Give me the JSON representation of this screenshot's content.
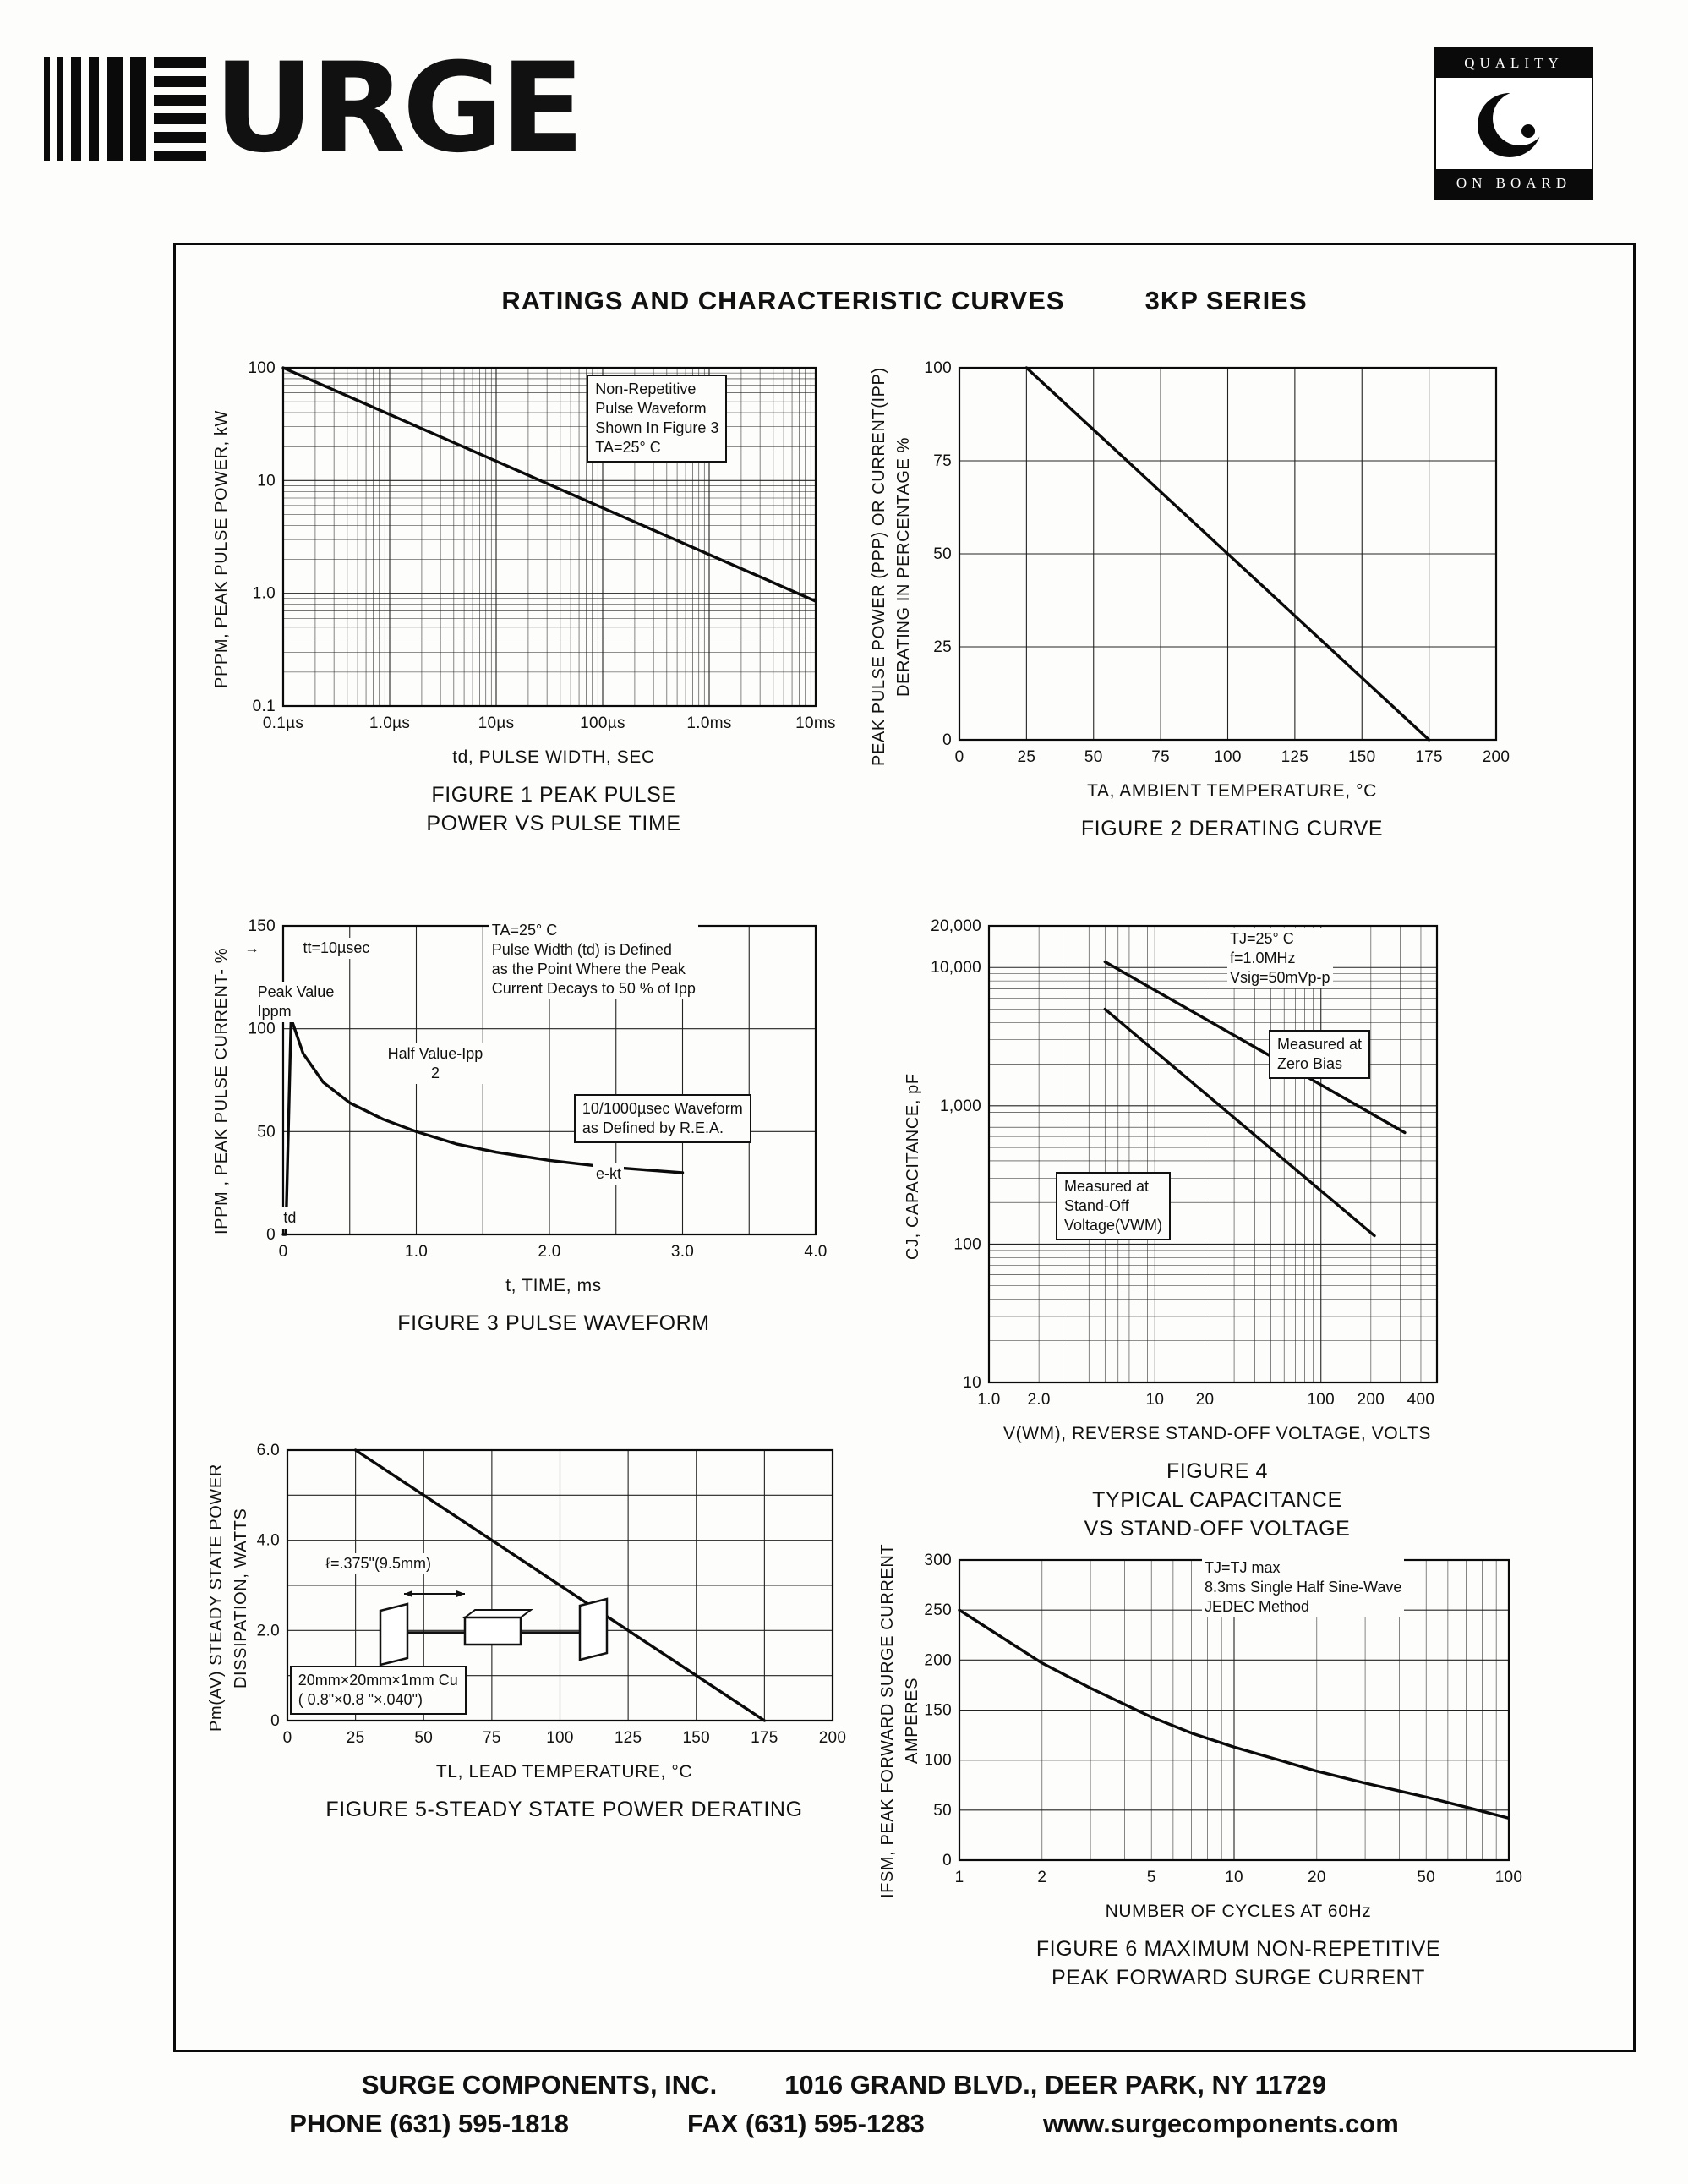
{
  "page": {
    "logo": {
      "word": "URGE"
    },
    "quality_logo": {
      "top": "QUALITY",
      "bottom": "ON BOARD"
    },
    "title": "RATINGS AND CHARACTERISTIC CURVES",
    "series_name": "3KP SERIES",
    "footer": {
      "company": "SURGE COMPONENTS, INC.",
      "address": "1016 GRAND BLVD., DEER PARK, NY  11729",
      "phone": "PHONE (631) 595-1818",
      "fax": "FAX (631) 595-1283",
      "website": "www.surgecomponents.com"
    }
  },
  "chart_data": [
    {
      "id": "fig1",
      "type": "line",
      "title": "FIGURE 1 PEAK PULSE\nPOWER VS PULSE TIME",
      "xlabel": "td, PULSE WIDTH, SEC",
      "ylabel": "PPPM,  PEAK  PULSE  POWER,  kW",
      "x_axis": {
        "scale": "log",
        "min": 1e-07,
        "max": 0.01,
        "ticks": [
          {
            "v": 1e-07,
            "l": "0.1µs"
          },
          {
            "v": 1e-06,
            "l": "1.0µs"
          },
          {
            "v": 1e-05,
            "l": "10µs"
          },
          {
            "v": 0.0001,
            "l": "100µs"
          },
          {
            "v": 0.001,
            "l": "1.0ms"
          },
          {
            "v": 0.01,
            "l": "10ms"
          }
        ]
      },
      "y_axis": {
        "scale": "log",
        "min": 0.1,
        "max": 100,
        "ticks": [
          {
            "v": 100,
            "l": "100"
          },
          {
            "v": 10,
            "l": "10"
          },
          {
            "v": 1,
            "l": "1.0"
          },
          {
            "v": 0.1,
            "l": "0.1"
          }
        ]
      },
      "series": [
        {
          "name": "peak pulse power",
          "points": [
            [
              1e-07,
              100
            ],
            [
              0.01,
              0.85
            ]
          ]
        }
      ],
      "annotations": [
        {
          "text": "Non-Repetitive\nPulse Waveform\nShown In Figure 3\nTA=25° C",
          "x": 59,
          "y": 5,
          "box": true
        }
      ]
    },
    {
      "id": "fig2",
      "type": "line",
      "title": "FIGURE 2 DERATING CURVE",
      "xlabel": "TA, AMBIENT   TEMPERATURE, °C",
      "ylabel": "PEAK  PULSE  POWER (PPP) OR  CURRENT(IPP)\nDERATING  IN  PERCENTAGE %",
      "x_axis": {
        "scale": "linear",
        "min": 0,
        "max": 200,
        "grid": 25,
        "ticks": [
          {
            "v": 0,
            "l": "0"
          },
          {
            "v": 25,
            "l": "25"
          },
          {
            "v": 50,
            "l": "50"
          },
          {
            "v": 75,
            "l": "75"
          },
          {
            "v": 100,
            "l": "100"
          },
          {
            "v": 125,
            "l": "125"
          },
          {
            "v": 150,
            "l": "150"
          },
          {
            "v": 175,
            "l": "175"
          },
          {
            "v": 200,
            "l": "200"
          }
        ]
      },
      "y_axis": {
        "scale": "linear",
        "min": 0,
        "max": 100,
        "grid": 25,
        "ticks": [
          {
            "v": 0,
            "l": "0"
          },
          {
            "v": 25,
            "l": "25"
          },
          {
            "v": 50,
            "l": "50"
          },
          {
            "v": 75,
            "l": "75"
          },
          {
            "v": 100,
            "l": "100"
          }
        ]
      },
      "series": [
        {
          "name": "derating",
          "points": [
            [
              25,
              100
            ],
            [
              175,
              0
            ]
          ]
        }
      ],
      "annotations": []
    },
    {
      "id": "fig3",
      "type": "line",
      "title": "FIGURE 3  PULSE WAVEFORM",
      "xlabel": "t, TIME, ms",
      "ylabel": "IPPM , PEAK  PULSE  CURRENT- %",
      "x_axis": {
        "scale": "linear",
        "min": 0,
        "max": 4,
        "grid": 0.5,
        "ticks": [
          {
            "v": 0,
            "l": "0"
          },
          {
            "v": 1,
            "l": "1.0"
          },
          {
            "v": 2,
            "l": "2.0"
          },
          {
            "v": 3,
            "l": "3.0"
          },
          {
            "v": 4,
            "l": "4.0"
          }
        ]
      },
      "y_axis": {
        "scale": "linear",
        "min": 0,
        "max": 150,
        "grid": 50,
        "ticks": [
          {
            "v": 0,
            "l": "0"
          },
          {
            "v": 50,
            "l": "50"
          },
          {
            "v": 100,
            "l": "100"
          },
          {
            "v": 150,
            "l": "150"
          }
        ]
      },
      "series": [
        {
          "name": "pulse waveform",
          "points": [
            [
              0,
              0
            ],
            [
              0.02,
              0
            ],
            [
              0.06,
              105
            ],
            [
              0.15,
              88
            ],
            [
              0.3,
              74
            ],
            [
              0.5,
              64
            ],
            [
              0.75,
              56
            ],
            [
              1.0,
              50
            ],
            [
              1.3,
              44
            ],
            [
              1.6,
              40
            ],
            [
              2.0,
              36
            ],
            [
              2.4,
              33
            ],
            [
              2.8,
              31
            ],
            [
              3.0,
              30
            ]
          ]
        }
      ],
      "annotations": [
        {
          "text": "→",
          "x": 6,
          "y": 8
        },
        {
          "text": "tt=10µsec",
          "x": 15,
          "y": 8
        },
        {
          "text": "TA=25° C\nPulse Width (td) is Defined\nas the Point Where the Peak\nCurrent Decays to 50 % of Ipp",
          "x": 44,
          "y": 3
        },
        {
          "text": "Peak Value\nIppm",
          "x": 8,
          "y": 20
        },
        {
          "text": "Half Value-Ipp\n2",
          "x": 28,
          "y": 37,
          "center": true
        },
        {
          "text": "10/1000µsec Waveform\nas Defined by R.E.A.",
          "x": 57,
          "y": 51,
          "box": true
        },
        {
          "text": "e-kt",
          "x": 60,
          "y": 70
        },
        {
          "text": "td",
          "x": 12,
          "y": 82
        }
      ]
    },
    {
      "id": "fig4",
      "type": "line",
      "title": "FIGURE 4\nTYPICAL CAPACITANCE\nVS STAND-OFF VOLTAGE",
      "xlabel": "V(WM), REVERSE  STAND-OFF  VOLTAGE, VOLTS",
      "ylabel": "CJ, CAPACITANCE, pF",
      "x_axis": {
        "scale": "log",
        "min": 1,
        "max": 500,
        "ticks": [
          {
            "v": 1,
            "l": "1.0"
          },
          {
            "v": 2,
            "l": "2.0"
          },
          {
            "v": 10,
            "l": "10"
          },
          {
            "v": 20,
            "l": "20"
          },
          {
            "v": 100,
            "l": "100"
          },
          {
            "v": 200,
            "l": "200"
          },
          {
            "v": 400,
            "l": "400"
          }
        ]
      },
      "y_axis": {
        "scale": "log",
        "min": 10,
        "max": 20000,
        "ticks": [
          {
            "v": 20000,
            "l": "20,000"
          },
          {
            "v": 10000,
            "l": "10,000"
          },
          {
            "v": 1000,
            "l": "1,000"
          },
          {
            "v": 100,
            "l": "100"
          },
          {
            "v": 10,
            "l": "10"
          }
        ]
      },
      "series": [
        {
          "name": "measured at zero bias",
          "points": [
            [
              5,
              11000
            ],
            [
              320,
              640
            ]
          ]
        },
        {
          "name": "measured at stand-off voltage",
          "points": [
            [
              5,
              5000
            ],
            [
              210,
              115
            ]
          ]
        }
      ],
      "annotations": [
        {
          "text": "TJ=25° C\nf=1.0MHz\nVsig=50mVp-p",
          "x": 56,
          "y": 3
        },
        {
          "text": "Measured at\nZero Bias",
          "x": 63,
          "y": 23,
          "box": true
        },
        {
          "text": "Measured at\nStand-Off\nVoltage(VWM)",
          "x": 27,
          "y": 51,
          "box": true
        }
      ]
    },
    {
      "id": "fig5",
      "type": "line",
      "title": "FIGURE 5-STEADY STATE POWER DERATING",
      "xlabel": "TL, LEAD  TEMPERATURE, °C",
      "ylabel": "Pm(AV) STEADY  STATE  POWER\nDISSIPATION, WATTS",
      "x_axis": {
        "scale": "linear",
        "min": 0,
        "max": 200,
        "grid": 25,
        "ticks": [
          {
            "v": 0,
            "l": "0"
          },
          {
            "v": 25,
            "l": "25"
          },
          {
            "v": 50,
            "l": "50"
          },
          {
            "v": 75,
            "l": "75"
          },
          {
            "v": 100,
            "l": "100"
          },
          {
            "v": 125,
            "l": "125"
          },
          {
            "v": 150,
            "l": "150"
          },
          {
            "v": 175,
            "l": "175"
          },
          {
            "v": 200,
            "l": "200"
          }
        ]
      },
      "y_axis": {
        "scale": "linear",
        "min": 0,
        "max": 6,
        "grid": 1,
        "ticks": [
          {
            "v": 0,
            "l": "0"
          },
          {
            "v": 2,
            "l": "2.0"
          },
          {
            "v": 4,
            "l": "4.0"
          },
          {
            "v": 6,
            "l": "6.0"
          }
        ]
      },
      "series": [
        {
          "name": "steady state power",
          "points": [
            [
              25,
              6
            ],
            [
              175,
              0
            ]
          ]
        }
      ],
      "annotations": [
        {
          "text": "ℓ=.375\"(9.5mm)",
          "x": 18,
          "y": 36
        },
        {
          "text": "20mm×20mm×1mm Cu\n( 0.8\"×0.8 \"×.040\")",
          "x": 13,
          "y": 71,
          "box": true
        }
      ]
    },
    {
      "id": "fig6",
      "type": "line",
      "title": "FIGURE 6  MAXIMUM NON-REPETITIVE\nPEAK FORWARD SURGE CURRENT",
      "xlabel": "NUMBER  OF  CYCLES  AT  60Hz",
      "ylabel": "IFSM, PEAK  FORWARD  SURGE  CURRENT\nAMPERES",
      "x_axis": {
        "scale": "log",
        "min": 1,
        "max": 100,
        "ticks": [
          {
            "v": 1,
            "l": "1"
          },
          {
            "v": 2,
            "l": "2"
          },
          {
            "v": 5,
            "l": "5"
          },
          {
            "v": 10,
            "l": "10"
          },
          {
            "v": 20,
            "l": "20"
          },
          {
            "v": 50,
            "l": "50"
          },
          {
            "v": 100,
            "l": "100"
          }
        ]
      },
      "y_axis": {
        "scale": "linear",
        "min": 0,
        "max": 300,
        "grid": 50,
        "ticks": [
          {
            "v": 0,
            "l": "0"
          },
          {
            "v": 50,
            "l": "50"
          },
          {
            "v": 100,
            "l": "100"
          },
          {
            "v": 150,
            "l": "150"
          },
          {
            "v": 200,
            "l": "200"
          },
          {
            "v": 250,
            "l": "250"
          },
          {
            "v": 300,
            "l": "300"
          }
        ]
      },
      "series": [
        {
          "name": "peak forward surge current",
          "points": [
            [
              1,
              250
            ],
            [
              2,
              197
            ],
            [
              3,
              172
            ],
            [
              5,
              143
            ],
            [
              7,
              127
            ],
            [
              10,
              113
            ],
            [
              15,
              99
            ],
            [
              20,
              89
            ],
            [
              30,
              77
            ],
            [
              50,
              63
            ],
            [
              70,
              53
            ],
            [
              100,
              42
            ]
          ]
        }
      ],
      "annotations": [
        {
          "text": "TJ=TJ max\n8.3ms Single Half Sine-Wave\nJEDEC Method",
          "x": 49,
          "y": 4
        }
      ]
    }
  ]
}
